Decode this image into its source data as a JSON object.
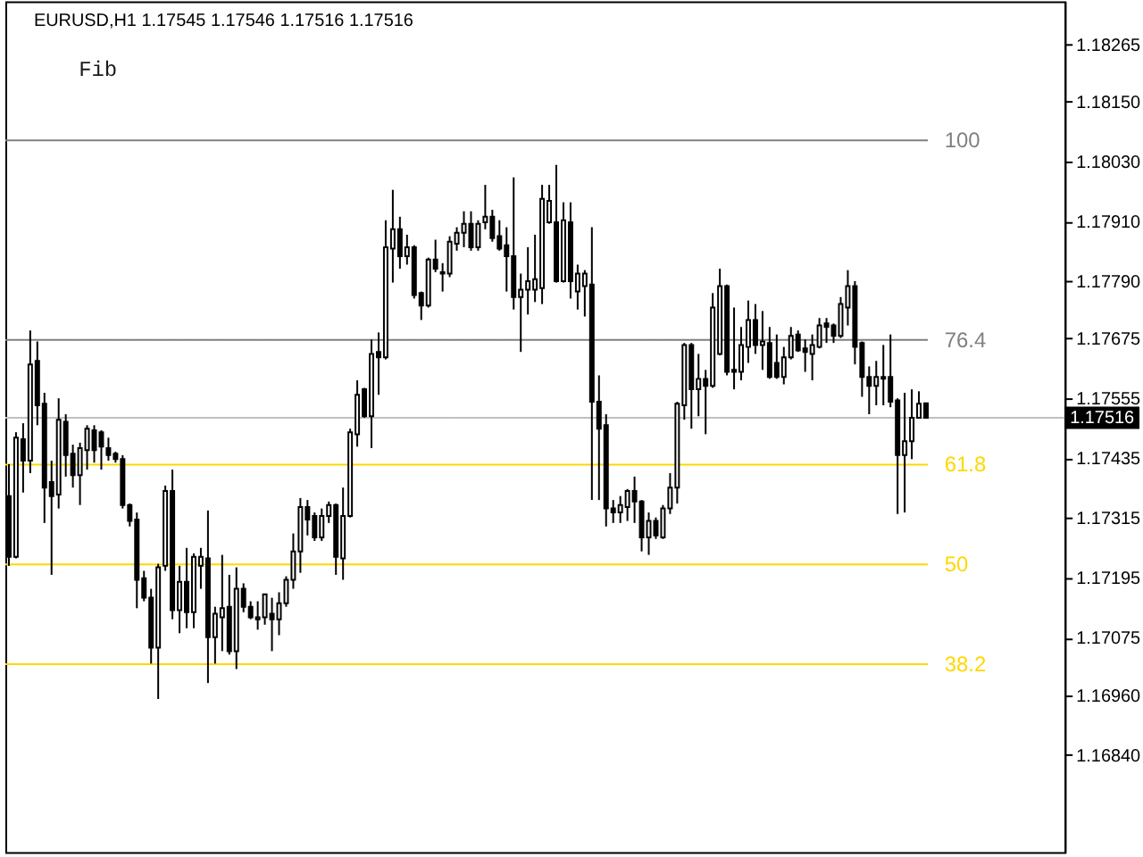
{
  "chart_data": {
    "type": "candlestick",
    "title": "EURUSD,H1  1.17545 1.17546 1.17516 1.17516",
    "annotations": [
      "Fib",
      "100",
      "76.4",
      "61.8",
      "50",
      "38.2"
    ],
    "tick_labels": "y",
    "categories": [
      null,
      null,
      null,
      null,
      null,
      null,
      null,
      null,
      null,
      null,
      null,
      null,
      null,
      null,
      null,
      null,
      null,
      null,
      null,
      null,
      null,
      null,
      null,
      null,
      null,
      null,
      null,
      null,
      null,
      null,
      null,
      null,
      null,
      null,
      null,
      null,
      null,
      null,
      null,
      null,
      null,
      null,
      null,
      null,
      null,
      null,
      null,
      null,
      null,
      null,
      null,
      null,
      null,
      null,
      null,
      null,
      null,
      null,
      null,
      null,
      null,
      null,
      null,
      null,
      null,
      null,
      null,
      null,
      null,
      null,
      null,
      null,
      null,
      null,
      null,
      null,
      null,
      null,
      null,
      null,
      null,
      null,
      null,
      null,
      null,
      null,
      null,
      null,
      null,
      null,
      null,
      null,
      null,
      null,
      null,
      null,
      null,
      null,
      null,
      null,
      null,
      null,
      null,
      null,
      null,
      null,
      null,
      null,
      null,
      null,
      null,
      null,
      null,
      null,
      null,
      null,
      null,
      null,
      null,
      null,
      null,
      null,
      null,
      null,
      null,
      null,
      null,
      null,
      null,
      null,
      null,
      null,
      null,
      null,
      null,
      null,
      null,
      null,
      null,
      null,
      null,
      null,
      null,
      null,
      null,
      null,
      null,
      null,
      null
    ],
    "ohlc": [
      [
        1.17359,
        1.17423,
        1.17219,
        1.17237
      ],
      [
        1.17237,
        1.17487,
        1.17234,
        1.17476
      ],
      [
        1.17473,
        1.17505,
        1.17366,
        1.1743
      ],
      [
        1.1743,
        1.17691,
        1.17405,
        1.17623
      ],
      [
        1.1763,
        1.17669,
        1.17501,
        1.17541
      ],
      [
        1.17544,
        1.17566,
        1.17305,
        1.17376
      ],
      [
        1.17387,
        1.1743,
        1.17201,
        1.17359
      ],
      [
        1.17362,
        1.17555,
        1.17334,
        1.17512
      ],
      [
        1.17508,
        1.17523,
        1.17398,
        1.17441
      ],
      [
        1.17444,
        1.17462,
        1.17376,
        1.17401
      ],
      [
        1.17401,
        1.17466,
        1.17341,
        1.17455
      ],
      [
        1.17451,
        1.17501,
        1.17412,
        1.17494
      ],
      [
        1.17491,
        1.17501,
        1.17426,
        1.17451
      ],
      [
        1.17487,
        1.17491,
        1.17412,
        1.17458
      ],
      [
        1.17455,
        1.17476,
        1.1743,
        1.17441
      ],
      [
        1.17444,
        1.17448,
        1.17426,
        1.17433
      ],
      [
        1.17433,
        1.17441,
        1.17334,
        1.17341
      ],
      [
        1.17341,
        1.17344,
        1.17298,
        1.17309
      ],
      [
        1.17312,
        1.17326,
        1.17134,
        1.17191
      ],
      [
        1.17194,
        1.17209,
        1.17148,
        1.17155
      ],
      [
        1.17155,
        1.17173,
        1.17023,
        1.17055
      ],
      [
        1.17055,
        1.17223,
        1.16952,
        1.17216
      ],
      [
        1.17219,
        1.1738,
        1.17209,
        1.17369
      ],
      [
        1.17369,
        1.17412,
        1.17112,
        1.1713
      ],
      [
        1.1713,
        1.17219,
        1.17084,
        1.17187
      ],
      [
        1.17187,
        1.17255,
        1.17094,
        1.17126
      ],
      [
        1.17126,
        1.17244,
        1.17094,
        1.17237
      ],
      [
        1.17219,
        1.17255,
        1.17173,
        1.17237
      ],
      [
        1.17234,
        1.1733,
        1.16984,
        1.17076
      ],
      [
        1.17076,
        1.17137,
        1.17023,
        1.17123
      ],
      [
        1.17116,
        1.17241,
        1.17048,
        1.17134
      ],
      [
        1.17137,
        1.17201,
        1.17041,
        1.17048
      ],
      [
        1.17048,
        1.17216,
        1.17012,
        1.17173
      ],
      [
        1.17173,
        1.17184,
        1.17126,
        1.17137
      ],
      [
        1.17137,
        1.17148,
        1.17112,
        1.17116
      ],
      [
        1.17112,
        1.17148,
        1.17091,
        1.17116
      ],
      [
        1.17116,
        1.17162,
        1.17101,
        1.17162
      ],
      [
        1.17123,
        1.17155,
        1.17048,
        1.17112
      ],
      [
        1.17112,
        1.17166,
        1.1708,
        1.17144
      ],
      [
        1.17144,
        1.17198,
        1.17137,
        1.17191
      ],
      [
        1.17191,
        1.17284,
        1.17173,
        1.17248
      ],
      [
        1.17248,
        1.17355,
        1.17205,
        1.17337
      ],
      [
        1.17337,
        1.17351,
        1.1728,
        1.17312
      ],
      [
        1.17319,
        1.17326,
        1.17269,
        1.17276
      ],
      [
        1.17276,
        1.17334,
        1.17269,
        1.17319
      ],
      [
        1.17319,
        1.17348,
        1.17305,
        1.17341
      ],
      [
        1.17341,
        1.17344,
        1.17201,
        1.17237
      ],
      [
        1.17234,
        1.17376,
        1.17191,
        1.17319
      ],
      [
        1.17319,
        1.17494,
        1.17316,
        1.17487
      ],
      [
        1.17483,
        1.17591,
        1.17458,
        1.17562
      ],
      [
        1.17573,
        1.17576,
        1.17516,
        1.17519
      ],
      [
        1.17519,
        1.17673,
        1.17455,
        1.17644
      ],
      [
        1.17648,
        1.17687,
        1.17562,
        1.17637
      ],
      [
        1.17637,
        1.17912,
        1.17633,
        1.17858
      ],
      [
        1.17855,
        1.17973,
        1.17787,
        1.17894
      ],
      [
        1.17894,
        1.17919,
        1.17815,
        1.1784
      ],
      [
        1.1784,
        1.17883,
        1.17823,
        1.17858
      ],
      [
        1.17858,
        1.17862,
        1.17755,
        1.17762
      ],
      [
        1.17766,
        1.17769,
        1.17712,
        1.17741
      ],
      [
        1.17741,
        1.17837,
        1.17737,
        1.17833
      ],
      [
        1.17833,
        1.17873,
        1.17808,
        1.17815
      ],
      [
        1.17808,
        1.17826,
        1.17769,
        1.17805
      ],
      [
        1.17805,
        1.1788,
        1.17798,
        1.17869
      ],
      [
        1.17865,
        1.17898,
        1.17851,
        1.17887
      ],
      [
        1.17887,
        1.1793,
        1.17858,
        1.17905
      ],
      [
        1.17905,
        1.1793,
        1.17851,
        1.17858
      ],
      [
        1.17858,
        1.17912,
        1.17851,
        1.17905
      ],
      [
        1.17908,
        1.17983,
        1.17894,
        1.17919
      ],
      [
        1.17919,
        1.17933,
        1.17869,
        1.17876
      ],
      [
        1.1788,
        1.17912,
        1.17851,
        1.17855
      ],
      [
        1.17862,
        1.17898,
        1.17769,
        1.1784
      ],
      [
        1.1784,
        1.17998,
        1.17733,
        1.17758
      ],
      [
        1.17758,
        1.17805,
        1.17648,
        1.17773
      ],
      [
        1.17773,
        1.17858,
        1.17723,
        1.1779
      ],
      [
        1.17773,
        1.17883,
        1.17748,
        1.17794
      ],
      [
        1.17776,
        1.17983,
        1.17744,
        1.17955
      ],
      [
        1.17908,
        1.17983,
        1.17905,
        1.17951
      ],
      [
        1.17908,
        1.18023,
        1.17787,
        1.1779
      ],
      [
        1.1779,
        1.17948,
        1.17787,
        1.17912
      ],
      [
        1.17908,
        1.17948,
        1.17755,
        1.1779
      ],
      [
        1.17769,
        1.17823,
        1.17733,
        1.17805
      ],
      [
        1.1778,
        1.17812,
        1.17719,
        1.17805
      ],
      [
        1.17783,
        1.17898,
        1.17351,
        1.17548
      ],
      [
        1.17548,
        1.17601,
        1.17351,
        1.17494
      ],
      [
        1.17501,
        1.17523,
        1.17298,
        1.17334
      ],
      [
        1.17334,
        1.17351,
        1.17305,
        1.17326
      ],
      [
        1.17326,
        1.17359,
        1.17305,
        1.17341
      ],
      [
        1.17337,
        1.17373,
        1.17309,
        1.17369
      ],
      [
        1.17369,
        1.17398,
        1.17305,
        1.17348
      ],
      [
        1.17348,
        1.17351,
        1.17248,
        1.17276
      ],
      [
        1.17276,
        1.17326,
        1.17241,
        1.17309
      ],
      [
        1.17309,
        1.17316,
        1.17273,
        1.1728
      ],
      [
        1.17276,
        1.17341,
        1.17273,
        1.17334
      ],
      [
        1.17334,
        1.17405,
        1.17323,
        1.17376
      ],
      [
        1.17376,
        1.17548,
        1.17344,
        1.17544
      ],
      [
        1.17541,
        1.17666,
        1.17512,
        1.17662
      ],
      [
        1.17662,
        1.17666,
        1.17494,
        1.17573
      ],
      [
        1.17573,
        1.17644,
        1.17519,
        1.17594
      ],
      [
        1.17594,
        1.17612,
        1.17483,
        1.1758
      ],
      [
        1.1758,
        1.17766,
        1.17576,
        1.17737
      ],
      [
        1.17644,
        1.17815,
        1.17641,
        1.1778
      ],
      [
        1.1778,
        1.17783,
        1.17601,
        1.17608
      ],
      [
        1.17612,
        1.17737,
        1.17573,
        1.17608
      ],
      [
        1.17608,
        1.17698,
        1.17591,
        1.17662
      ],
      [
        1.17658,
        1.17751,
        1.17626,
        1.17712
      ],
      [
        1.17712,
        1.17744,
        1.17644,
        1.17662
      ],
      [
        1.17662,
        1.1773,
        1.17612,
        1.17669
      ],
      [
        1.17666,
        1.17698,
        1.17594,
        1.17598
      ],
      [
        1.17626,
        1.17683,
        1.17594,
        1.17598
      ],
      [
        1.17598,
        1.17658,
        1.17583,
        1.17637
      ],
      [
        1.17637,
        1.17698,
        1.17633,
        1.1768
      ],
      [
        1.17683,
        1.17691,
        1.17648,
        1.17651
      ],
      [
        1.17655,
        1.17673,
        1.17608,
        1.17648
      ],
      [
        1.17644,
        1.17683,
        1.17591,
        1.17662
      ],
      [
        1.17658,
        1.17716,
        1.17655,
        1.17701
      ],
      [
        1.17705,
        1.17716,
        1.17666,
        1.17698
      ],
      [
        1.17701,
        1.17705,
        1.17666,
        1.1768
      ],
      [
        1.1768,
        1.17758,
        1.17676,
        1.17744
      ],
      [
        1.17737,
        1.17812,
        1.17701,
        1.1778
      ],
      [
        1.1778,
        1.1779,
        1.17623,
        1.17658
      ],
      [
        1.17666,
        1.17669,
        1.17558,
        1.17598
      ],
      [
        1.17598,
        1.17619,
        1.17523,
        1.1758
      ],
      [
        1.1758,
        1.1763,
        1.17541,
        1.17598
      ],
      [
        1.17598,
        1.17662,
        1.17541,
        1.17594
      ],
      [
        1.17598,
        1.17683,
        1.17537,
        1.17548
      ],
      [
        1.17551,
        1.17555,
        1.17323,
        1.17441
      ],
      [
        1.17441,
        1.17566,
        1.17326,
        1.17469
      ],
      [
        1.17469,
        1.17573,
        1.17433,
        1.17516
      ],
      [
        1.17516,
        1.17569,
        1.17516,
        1.17544
      ],
      [
        1.17545,
        1.17546,
        1.17516,
        1.17516
      ],
      null,
      null,
      null,
      null,
      null,
      null,
      null,
      null,
      null,
      null,
      null,
      null,
      null,
      null,
      null,
      null,
      null,
      null,
      null
    ],
    "ylim": [
      1.16645,
      1.18351
    ],
    "yticks": [
      1.18265,
      {
        "value": 1.1815,
        "label": "1.18150"
      },
      {
        "value": 1.1803,
        "label": "1.18030"
      },
      {
        "value": 1.1791,
        "label": "1.17910"
      },
      {
        "value": 1.1779,
        "label": "1.17790"
      },
      1.17675,
      1.17555,
      1.17435,
      1.17315,
      1.17195,
      1.17075,
      {
        "value": 1.1696,
        "label": "1.16960"
      },
      {
        "value": 1.1684,
        "label": "1.16840"
      }
    ],
    "ref_lines": [
      {
        "axis": "y",
        "value": 1.18072,
        "color": "#808080"
      },
      {
        "axis": "y",
        "value": 1.17672,
        "color": "#808080"
      },
      {
        "axis": "y",
        "value": 1.17422,
        "color": "#ffd700"
      },
      {
        "axis": "y",
        "value": 1.17222,
        "color": "#ffd700"
      },
      {
        "axis": "y",
        "value": 1.17022,
        "color": "#ffd700"
      },
      {
        "axis": "y",
        "value": 1.17516,
        "label": "1.17516",
        "color": "#c0c0c0"
      }
    ]
  }
}
